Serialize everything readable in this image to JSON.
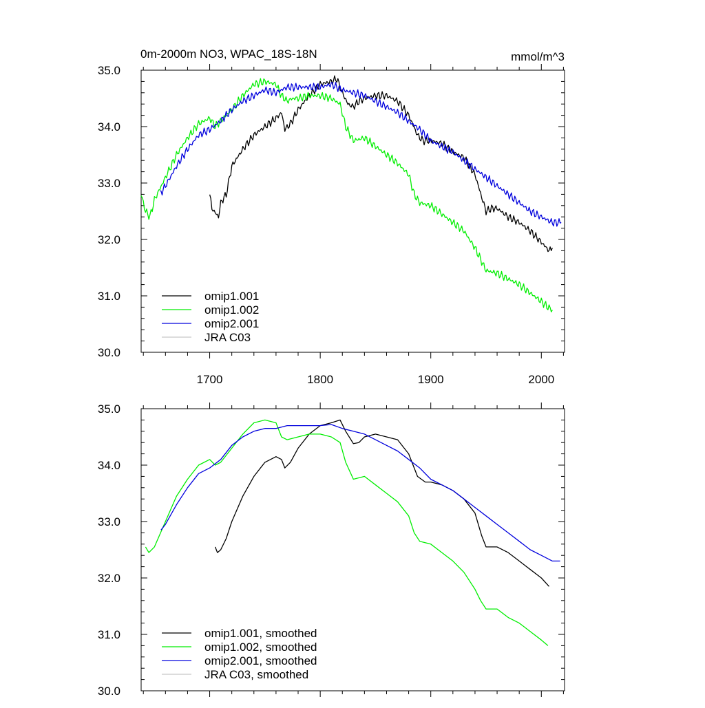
{
  "chart_data": [
    {
      "type": "line",
      "title": "0m-2000m NO3, WPAC_18S-18N",
      "units": "mmol/m^3",
      "xlabel": "",
      "ylabel": "",
      "xlim": [
        1638,
        2021
      ],
      "ylim": [
        30.0,
        35.0
      ],
      "xticks": [
        1700,
        1800,
        1900,
        2000
      ],
      "xtick_labels": [
        "1700",
        "1800",
        "1900",
        "2000"
      ],
      "yticks": [
        30,
        31,
        32,
        33,
        34,
        35
      ],
      "ytick_labels": [
        "30.0",
        "31.0",
        "32.0",
        "33.0",
        "34.0",
        "35.0"
      ],
      "legend_position": "bottom-left",
      "series": [
        {
          "name": "omip1.001",
          "color": "#000000",
          "points": [
            [
              1700,
              32.8
            ],
            [
              1702,
              32.55
            ],
            [
              1704,
              32.5
            ],
            [
              1706,
              32.45
            ],
            [
              1708,
              32.4
            ],
            [
              1710,
              32.65
            ],
            [
              1715,
              32.8
            ],
            [
              1720,
              33.3
            ],
            [
              1730,
              33.6
            ],
            [
              1740,
              33.85
            ],
            [
              1750,
              34.0
            ],
            [
              1760,
              34.15
            ],
            [
              1765,
              34.25
            ],
            [
              1768,
              33.95
            ],
            [
              1773,
              34.05
            ],
            [
              1780,
              34.3
            ],
            [
              1790,
              34.55
            ],
            [
              1800,
              34.75
            ],
            [
              1810,
              34.8
            ],
            [
              1815,
              34.85
            ],
            [
              1820,
              34.6
            ],
            [
              1825,
              34.4
            ],
            [
              1830,
              34.35
            ],
            [
              1835,
              34.45
            ],
            [
              1840,
              34.5
            ],
            [
              1850,
              34.55
            ],
            [
              1860,
              34.55
            ],
            [
              1870,
              34.45
            ],
            [
              1880,
              34.2
            ],
            [
              1888,
              33.85
            ],
            [
              1893,
              33.75
            ],
            [
              1900,
              33.75
            ],
            [
              1910,
              33.7
            ],
            [
              1920,
              33.55
            ],
            [
              1930,
              33.45
            ],
            [
              1940,
              33.15
            ],
            [
              1946,
              32.75
            ],
            [
              1950,
              32.5
            ],
            [
              1955,
              32.55
            ],
            [
              1960,
              32.55
            ],
            [
              1970,
              32.4
            ],
            [
              1980,
              32.3
            ],
            [
              1990,
              32.15
            ],
            [
              2000,
              31.95
            ],
            [
              2007,
              31.8
            ],
            [
              2010,
              31.85
            ]
          ]
        },
        {
          "name": "omip1.002",
          "color": "#00ee00",
          "points": [
            [
              1638,
              32.8
            ],
            [
              1642,
              32.5
            ],
            [
              1646,
              32.4
            ],
            [
              1650,
              32.7
            ],
            [
              1655,
              32.9
            ],
            [
              1660,
              33.1
            ],
            [
              1670,
              33.5
            ],
            [
              1680,
              33.8
            ],
            [
              1690,
              34.05
            ],
            [
              1700,
              34.15
            ],
            [
              1705,
              34.0
            ],
            [
              1710,
              34.1
            ],
            [
              1720,
              34.3
            ],
            [
              1730,
              34.55
            ],
            [
              1740,
              34.75
            ],
            [
              1750,
              34.8
            ],
            [
              1760,
              34.75
            ],
            [
              1765,
              34.55
            ],
            [
              1770,
              34.45
            ],
            [
              1775,
              34.5
            ],
            [
              1780,
              34.5
            ],
            [
              1790,
              34.55
            ],
            [
              1800,
              34.55
            ],
            [
              1810,
              34.5
            ],
            [
              1818,
              34.4
            ],
            [
              1823,
              34.0
            ],
            [
              1830,
              33.75
            ],
            [
              1840,
              33.8
            ],
            [
              1850,
              33.65
            ],
            [
              1860,
              33.5
            ],
            [
              1870,
              33.35
            ],
            [
              1880,
              33.15
            ],
            [
              1885,
              32.8
            ],
            [
              1890,
              32.65
            ],
            [
              1900,
              32.6
            ],
            [
              1910,
              32.45
            ],
            [
              1920,
              32.3
            ],
            [
              1930,
              32.15
            ],
            [
              1940,
              31.85
            ],
            [
              1945,
              31.65
            ],
            [
              1950,
              31.45
            ],
            [
              1960,
              31.4
            ],
            [
              1970,
              31.3
            ],
            [
              1980,
              31.2
            ],
            [
              1990,
              31.05
            ],
            [
              2000,
              30.9
            ],
            [
              2006,
              30.8
            ],
            [
              2010,
              30.75
            ]
          ]
        },
        {
          "name": "omip2.001",
          "color": "#0000dd",
          "points": [
            [
              1655,
              32.8
            ],
            [
              1660,
              32.95
            ],
            [
              1670,
              33.3
            ],
            [
              1680,
              33.6
            ],
            [
              1690,
              33.85
            ],
            [
              1700,
              33.95
            ],
            [
              1710,
              34.1
            ],
            [
              1720,
              34.3
            ],
            [
              1730,
              34.45
            ],
            [
              1740,
              34.55
            ],
            [
              1750,
              34.65
            ],
            [
              1760,
              34.6
            ],
            [
              1770,
              34.7
            ],
            [
              1780,
              34.7
            ],
            [
              1790,
              34.7
            ],
            [
              1800,
              34.7
            ],
            [
              1810,
              34.75
            ],
            [
              1820,
              34.65
            ],
            [
              1830,
              34.6
            ],
            [
              1840,
              34.55
            ],
            [
              1850,
              34.45
            ],
            [
              1860,
              34.35
            ],
            [
              1870,
              34.25
            ],
            [
              1880,
              34.1
            ],
            [
              1890,
              33.95
            ],
            [
              1900,
              33.75
            ],
            [
              1910,
              33.65
            ],
            [
              1920,
              33.55
            ],
            [
              1930,
              33.4
            ],
            [
              1940,
              33.25
            ],
            [
              1950,
              33.1
            ],
            [
              1960,
              32.95
            ],
            [
              1970,
              32.8
            ],
            [
              1980,
              32.65
            ],
            [
              1990,
              32.5
            ],
            [
              2000,
              32.4
            ],
            [
              2010,
              32.3
            ],
            [
              2018,
              32.3
            ]
          ]
        },
        {
          "name": "JRA C03",
          "color": "#c8c8c8",
          "points": []
        }
      ]
    },
    {
      "type": "line",
      "title": "",
      "xlabel": "",
      "ylabel": "",
      "xlim": [
        1638,
        2021
      ],
      "ylim": [
        30.0,
        35.0
      ],
      "xticks": [
        1700,
        1800,
        1900,
        2000
      ],
      "xtick_labels": [],
      "yticks": [
        30,
        31,
        32,
        33,
        34,
        35
      ],
      "ytick_labels": [
        "30.0",
        "31.0",
        "32.0",
        "33.0",
        "34.0",
        "35.0"
      ],
      "legend_position": "bottom-left",
      "series": [
        {
          "name": "omip1.001, smoothed",
          "color": "#000000",
          "points": [
            [
              1705,
              32.55
            ],
            [
              1707,
              32.45
            ],
            [
              1710,
              32.5
            ],
            [
              1715,
              32.7
            ],
            [
              1720,
              33.0
            ],
            [
              1730,
              33.45
            ],
            [
              1740,
              33.8
            ],
            [
              1750,
              34.05
            ],
            [
              1760,
              34.15
            ],
            [
              1765,
              34.1
            ],
            [
              1768,
              33.95
            ],
            [
              1773,
              34.05
            ],
            [
              1780,
              34.3
            ],
            [
              1790,
              34.55
            ],
            [
              1800,
              34.7
            ],
            [
              1810,
              34.75
            ],
            [
              1818,
              34.8
            ],
            [
              1823,
              34.6
            ],
            [
              1830,
              34.38
            ],
            [
              1835,
              34.4
            ],
            [
              1840,
              34.5
            ],
            [
              1850,
              34.55
            ],
            [
              1860,
              34.5
            ],
            [
              1870,
              34.45
            ],
            [
              1880,
              34.2
            ],
            [
              1888,
              33.8
            ],
            [
              1895,
              33.7
            ],
            [
              1900,
              33.7
            ],
            [
              1910,
              33.65
            ],
            [
              1920,
              33.55
            ],
            [
              1930,
              33.4
            ],
            [
              1940,
              33.15
            ],
            [
              1946,
              32.75
            ],
            [
              1950,
              32.55
            ],
            [
              1955,
              32.55
            ],
            [
              1960,
              32.55
            ],
            [
              1970,
              32.45
            ],
            [
              1980,
              32.3
            ],
            [
              1990,
              32.15
            ],
            [
              2000,
              32.0
            ],
            [
              2007,
              31.85
            ]
          ]
        },
        {
          "name": "omip1.002, smoothed",
          "color": "#00ee00",
          "points": [
            [
              1642,
              32.55
            ],
            [
              1645,
              32.45
            ],
            [
              1650,
              32.55
            ],
            [
              1660,
              33.0
            ],
            [
              1670,
              33.45
            ],
            [
              1680,
              33.75
            ],
            [
              1690,
              34.0
            ],
            [
              1700,
              34.1
            ],
            [
              1705,
              34.0
            ],
            [
              1710,
              34.05
            ],
            [
              1720,
              34.3
            ],
            [
              1730,
              34.55
            ],
            [
              1740,
              34.75
            ],
            [
              1750,
              34.8
            ],
            [
              1760,
              34.75
            ],
            [
              1765,
              34.5
            ],
            [
              1770,
              34.45
            ],
            [
              1780,
              34.5
            ],
            [
              1790,
              34.55
            ],
            [
              1800,
              34.55
            ],
            [
              1810,
              34.5
            ],
            [
              1818,
              34.4
            ],
            [
              1823,
              34.05
            ],
            [
              1830,
              33.75
            ],
            [
              1840,
              33.8
            ],
            [
              1850,
              33.65
            ],
            [
              1860,
              33.5
            ],
            [
              1870,
              33.35
            ],
            [
              1880,
              33.1
            ],
            [
              1885,
              32.8
            ],
            [
              1890,
              32.65
            ],
            [
              1900,
              32.6
            ],
            [
              1910,
              32.45
            ],
            [
              1920,
              32.3
            ],
            [
              1930,
              32.1
            ],
            [
              1940,
              31.8
            ],
            [
              1945,
              31.6
            ],
            [
              1950,
              31.45
            ],
            [
              1960,
              31.45
            ],
            [
              1970,
              31.3
            ],
            [
              1980,
              31.2
            ],
            [
              1990,
              31.05
            ],
            [
              2000,
              30.9
            ],
            [
              2006,
              30.8
            ]
          ]
        },
        {
          "name": "omip2.001, smoothed",
          "color": "#0000dd",
          "points": [
            [
              1656,
              32.85
            ],
            [
              1660,
              32.95
            ],
            [
              1670,
              33.3
            ],
            [
              1680,
              33.6
            ],
            [
              1690,
              33.85
            ],
            [
              1700,
              33.95
            ],
            [
              1710,
              34.1
            ],
            [
              1720,
              34.35
            ],
            [
              1730,
              34.5
            ],
            [
              1740,
              34.6
            ],
            [
              1750,
              34.65
            ],
            [
              1760,
              34.65
            ],
            [
              1770,
              34.7
            ],
            [
              1780,
              34.7
            ],
            [
              1790,
              34.7
            ],
            [
              1800,
              34.7
            ],
            [
              1810,
              34.72
            ],
            [
              1820,
              34.65
            ],
            [
              1830,
              34.6
            ],
            [
              1840,
              34.55
            ],
            [
              1850,
              34.45
            ],
            [
              1860,
              34.35
            ],
            [
              1870,
              34.25
            ],
            [
              1880,
              34.1
            ],
            [
              1890,
              33.95
            ],
            [
              1900,
              33.75
            ],
            [
              1910,
              33.65
            ],
            [
              1920,
              33.55
            ],
            [
              1930,
              33.4
            ],
            [
              1940,
              33.25
            ],
            [
              1950,
              33.1
            ],
            [
              1960,
              32.95
            ],
            [
              1970,
              32.8
            ],
            [
              1980,
              32.65
            ],
            [
              1990,
              32.5
            ],
            [
              2000,
              32.4
            ],
            [
              2010,
              32.3
            ],
            [
              2017,
              32.3
            ]
          ]
        },
        {
          "name": "JRA C03, smoothed",
          "color": "#c8c8c8",
          "points": []
        }
      ]
    }
  ]
}
